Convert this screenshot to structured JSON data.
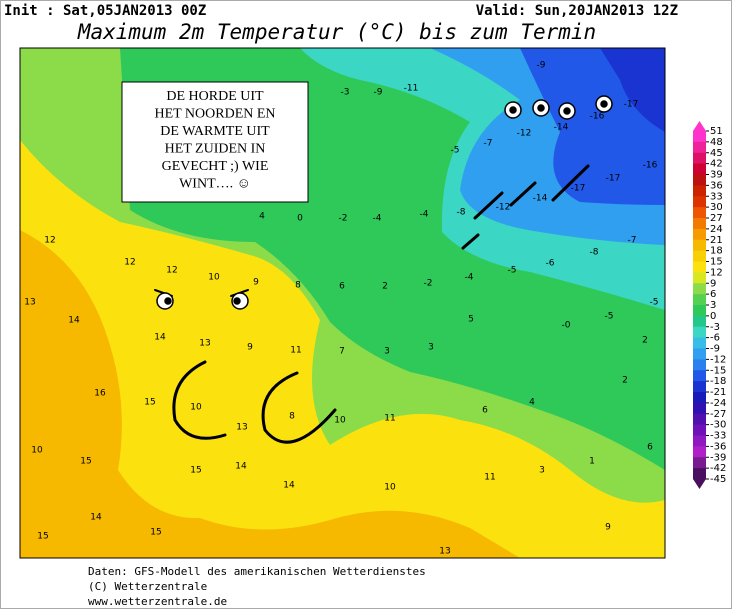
{
  "header": {
    "init": "Init : Sat,05JAN2013 00Z",
    "valid": "Valid: Sun,20JAN2013 12Z",
    "title": "Maximum 2m Temperatur (°C) bis zum Termin"
  },
  "annotation": {
    "lines": [
      "DE HORDE UIT",
      "HET NOORDEN EN",
      "DE WARMTE UIT",
      "HET ZUIDEN IN",
      "GEVECHT ;) WIE",
      "WINT…. ☺"
    ]
  },
  "map": {
    "labels": [
      -3,
      -9,
      -11,
      -9,
      -7,
      -12,
      -14,
      -16,
      -17,
      -16,
      -17,
      -14,
      -12,
      -8,
      -17,
      -7,
      -8,
      -6,
      -5,
      -5,
      -4,
      -4,
      -2,
      0,
      4,
      -4,
      -2,
      2,
      6,
      8,
      "-0",
      -5,
      -5,
      5,
      3,
      3,
      7,
      11,
      9,
      13,
      14,
      12,
      10,
      9,
      12,
      13,
      14,
      12,
      16,
      15,
      10,
      13,
      8,
      10,
      11,
      6,
      4,
      2,
      6,
      1,
      3,
      11,
      10,
      14,
      14,
      15,
      15,
      10,
      15,
      14,
      15,
      13,
      9,
      2
    ]
  },
  "legend": {
    "ticks": [
      51,
      48,
      45,
      42,
      39,
      36,
      33,
      30,
      27,
      24,
      21,
      18,
      15,
      12,
      9,
      6,
      3,
      0,
      -3,
      -6,
      -9,
      -12,
      -15,
      -18,
      -21,
      -24,
      -27,
      -30,
      -33,
      -36,
      -39,
      -42,
      -45
    ],
    "colors": [
      "#ff33cc",
      "#ee2299",
      "#dd1166",
      "#cc0033",
      "#bb1111",
      "#cc2200",
      "#dd3300",
      "#ee5500",
      "#f27a00",
      "#f69a00",
      "#f6b900",
      "#f8cf05",
      "#fbe20f",
      "#d8e820",
      "#8cdc4a",
      "#55d050",
      "#2fc95a",
      "#22c88a",
      "#3bd6c4",
      "#38bde8",
      "#309ff0",
      "#2a80ee",
      "#2258e8",
      "#1a34d2",
      "#1a1ab8",
      "#3010b0",
      "#5010b0",
      "#7010b8",
      "#9018c0",
      "#b020c8",
      "#7a1a90",
      "#4a1060"
    ]
  },
  "footer": {
    "lines": [
      "Daten: GFS-Modell des amerikanischen Wetterdienstes",
      "(C) Wetterzentrale",
      "www.wetterzentrale.de"
    ]
  }
}
